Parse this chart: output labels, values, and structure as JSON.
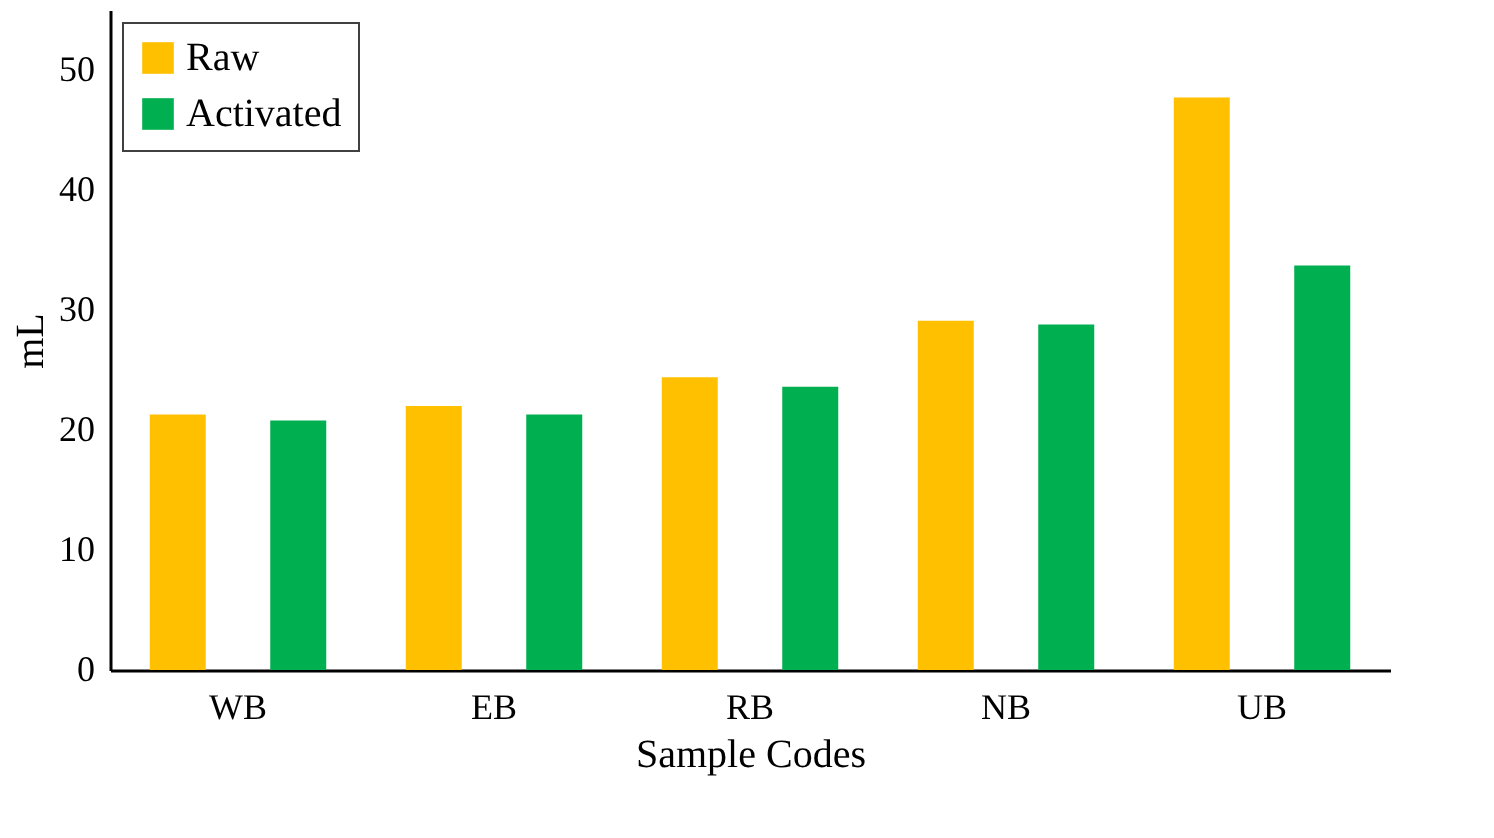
{
  "chart_data": {
    "type": "bar",
    "xlabel": "Sample Codes",
    "ylabel": "mL",
    "categories": [
      "WB",
      "EB",
      "RB",
      "NB",
      "UB"
    ],
    "series": [
      {
        "name": "Raw",
        "color": "#ffc000",
        "values": [
          21.3,
          22.0,
          24.4,
          29.1,
          47.7
        ]
      },
      {
        "name": "Activated",
        "color": "#00b050",
        "values": [
          20.8,
          21.3,
          23.6,
          28.8,
          33.7
        ]
      }
    ],
    "ylim": [
      0,
      55
    ],
    "yticks": [
      0,
      10,
      20,
      30,
      40,
      50
    ],
    "grid": false,
    "legend": "top left"
  }
}
